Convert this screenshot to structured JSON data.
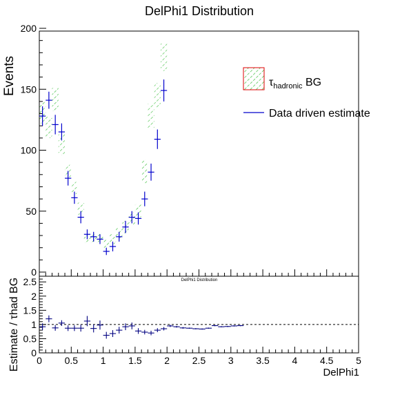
{
  "title": "DelPhi1 Distribution",
  "lower_title": "DelPhi1 Distribution",
  "colors": {
    "data": "#0000cc",
    "band_hatch": "#33bb33",
    "band_frame": "#dd0000",
    "ratio": "#000080"
  },
  "legend": {
    "placement": "top-right",
    "band_label_main": "τ",
    "band_label_sub": "hadronic",
    "band_label_tail": " BG",
    "data_label": "Data driven estimate"
  },
  "chart_data": [
    {
      "type": "bar",
      "title": "DelPhi1 Distribution",
      "xlabel": "",
      "ylabel": "Events",
      "xlim": [
        0,
        5
      ],
      "ylim": [
        0,
        200
      ],
      "yticks": [
        "0",
        "50",
        "100",
        "150",
        "200"
      ],
      "bin_width": 0.1,
      "series": [
        {
          "name": "τhadronic BG",
          "kind": "band",
          "x": [
            0.05,
            0.15,
            0.25,
            0.35,
            0.45,
            0.55,
            0.65,
            0.75,
            0.85,
            0.95,
            1.05,
            1.15,
            1.25,
            1.35,
            1.45,
            1.55,
            1.65,
            1.75,
            1.85,
            1.95
          ],
          "low": [
            122,
            110,
            132,
            96,
            78,
            64,
            47,
            24,
            24,
            24,
            20,
            23,
            28,
            32,
            39,
            45,
            73,
            118,
            135,
            165
          ],
          "high": [
            140,
            128,
            151,
            113,
            88,
            74,
            57,
            32,
            32,
            32,
            27,
            31,
            36,
            42,
            49,
            56,
            92,
            138,
            155,
            188
          ]
        },
        {
          "name": "Data driven estimate",
          "kind": "points",
          "x": [
            0.05,
            0.15,
            0.25,
            0.35,
            0.45,
            0.55,
            0.65,
            0.75,
            0.85,
            0.95,
            1.05,
            1.15,
            1.25,
            1.35,
            1.45,
            1.55,
            1.65,
            1.75,
            1.85,
            1.95
          ],
          "y": [
            128,
            141,
            121,
            115,
            77,
            61,
            45,
            31,
            29,
            27,
            17,
            21,
            29,
            37,
            45,
            44,
            60,
            82,
            109,
            149
          ],
          "yerr": [
            8,
            7,
            8,
            7,
            6,
            5,
            5,
            4,
            4,
            4,
            3,
            4,
            4,
            5,
            5,
            5,
            6,
            7,
            8,
            9
          ]
        }
      ]
    },
    {
      "type": "scatter",
      "title": "DelPhi1 Distribution",
      "xlabel": "DelPhi1",
      "ylabel": "Estimate / τhad BG",
      "xlim": [
        0,
        5
      ],
      "ylim": [
        0,
        2.7
      ],
      "xticks": [
        "0",
        "0.5",
        "1",
        "1.5",
        "2",
        "2.5",
        "3",
        "3.5",
        "4",
        "4.5",
        "5"
      ],
      "yticks": [
        "0",
        "0.5",
        "1",
        "1.5",
        "2",
        "2.5"
      ],
      "reference_line": 1,
      "series": [
        {
          "name": "ratio",
          "x": [
            0.05,
            0.15,
            0.25,
            0.35,
            0.45,
            0.55,
            0.65,
            0.75,
            0.85,
            0.95,
            1.05,
            1.15,
            1.25,
            1.35,
            1.45,
            1.55,
            1.65,
            1.75,
            1.85,
            1.95,
            2.05,
            2.15,
            2.25,
            2.35,
            2.45,
            2.55,
            2.65,
            2.75,
            2.85,
            2.95,
            3.05,
            3.15
          ],
          "y": [
            0.92,
            1.2,
            0.88,
            1.05,
            0.87,
            0.87,
            0.87,
            1.12,
            0.86,
            0.98,
            0.62,
            0.68,
            0.8,
            0.92,
            0.95,
            0.77,
            0.73,
            0.7,
            0.8,
            0.85,
            0.95,
            0.92,
            0.88,
            0.87,
            0.85,
            0.84,
            0.87,
            0.96,
            0.92,
            0.93,
            0.95,
            0.96
          ],
          "yerr": [
            0.12,
            0.12,
            0.1,
            0.1,
            0.1,
            0.1,
            0.12,
            0.18,
            0.14,
            0.16,
            0.12,
            0.12,
            0.12,
            0.12,
            0.12,
            0.1,
            0.08,
            0.08,
            0.07,
            0.06,
            0.04,
            0.03,
            0.03,
            0.02,
            0.02,
            0.02,
            0.02,
            0.02,
            0.02,
            0.02,
            0.02,
            0.02
          ]
        }
      ]
    }
  ]
}
